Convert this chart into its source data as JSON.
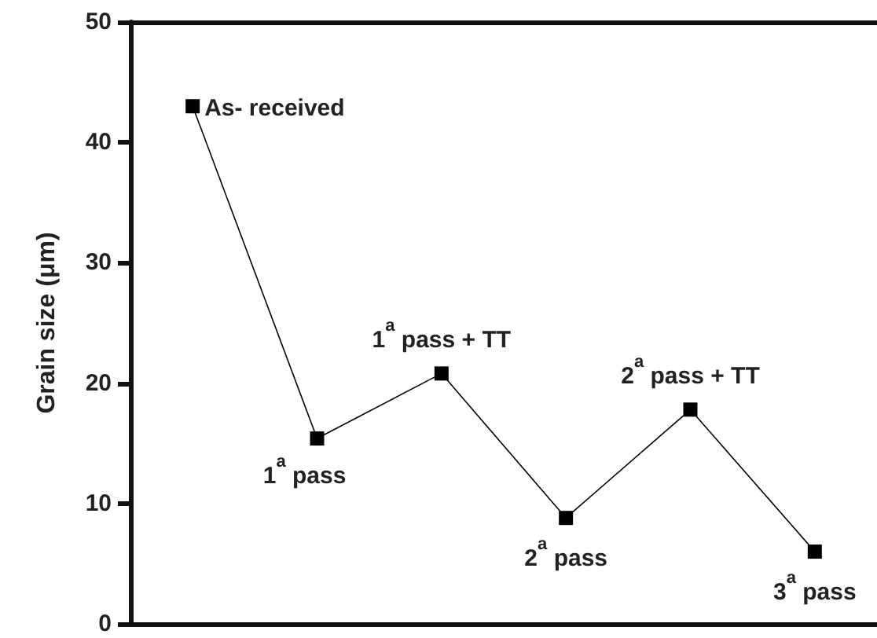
{
  "chart_data": {
    "type": "line",
    "ylabel": "Grain size (μm)",
    "categories": [
      null,
      null,
      null,
      null,
      null,
      null
    ],
    "series": [
      {
        "color": "#000000",
        "values": [
          43,
          15.4,
          20.8,
          8.8,
          17.8,
          6.0
        ]
      }
    ],
    "annotations": [
      "As- received",
      {
        "text": "1$^{a}$ pass",
        "y": 15.4
      },
      {
        "text": "1$^{a}$ pass + TT",
        "y": 20.8
      },
      {
        "text": "2$^{a}$ pass",
        "y": 8.8
      },
      {
        "text": "2$^{a}$ pass + TT",
        "y": 17.8
      },
      {
        "text": "3$^{a}$ pass",
        "y": 6.0
      }
    ],
    "ylim": [
      0,
      50
    ],
    "yticks": [
      0,
      10,
      20,
      30,
      40,
      50
    ],
    "tick_labels": "y",
    "grid": false,
    "marker": "square",
    "line_style": "solid"
  }
}
